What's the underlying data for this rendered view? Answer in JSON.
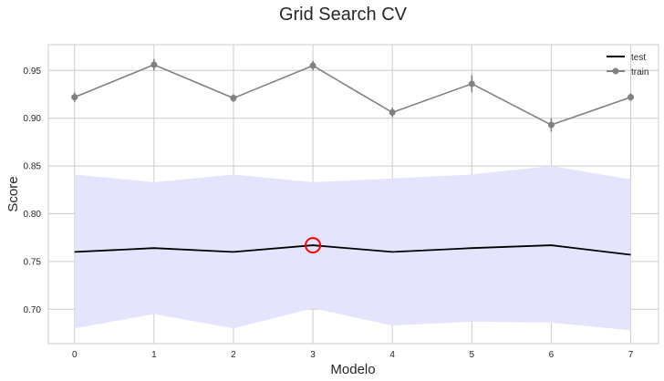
{
  "chart_data": {
    "type": "line",
    "title": "Grid Search CV",
    "xlabel": "Modelo",
    "ylabel": "Score",
    "xlim": [
      -0.33,
      7.35
    ],
    "ylim": [
      0.664,
      0.977
    ],
    "x": [
      0,
      1,
      2,
      3,
      4,
      5,
      6,
      7
    ],
    "xticks": [
      0,
      1,
      2,
      3,
      4,
      5,
      6,
      7
    ],
    "yticks": [
      0.7,
      0.75,
      0.8,
      0.85,
      0.9,
      0.95
    ],
    "ytick_labels": [
      "0.70",
      "0.75",
      "0.80",
      "0.85",
      "0.90",
      "0.95"
    ],
    "grid": true,
    "legend_position": "top-right",
    "series": [
      {
        "name": "test",
        "color": "#000000",
        "values": [
          0.76,
          0.764,
          0.76,
          0.767,
          0.76,
          0.764,
          0.767,
          0.757
        ],
        "band_upper": [
          0.841,
          0.833,
          0.841,
          0.833,
          0.837,
          0.841,
          0.85,
          0.836
        ],
        "band_lower": [
          0.68,
          0.695,
          0.68,
          0.701,
          0.683,
          0.687,
          0.686,
          0.678
        ],
        "band_color": "#e3e3fd"
      },
      {
        "name": "train",
        "color": "#808080",
        "marker": "circle",
        "values": [
          0.922,
          0.956,
          0.921,
          0.955,
          0.906,
          0.936,
          0.893,
          0.922
        ],
        "error": [
          0.005,
          0.006,
          0.004,
          0.005,
          0.005,
          0.009,
          0.007,
          0.004
        ]
      }
    ],
    "highlight": {
      "x": 3,
      "y": 0.767,
      "color": "#ff0000"
    }
  }
}
